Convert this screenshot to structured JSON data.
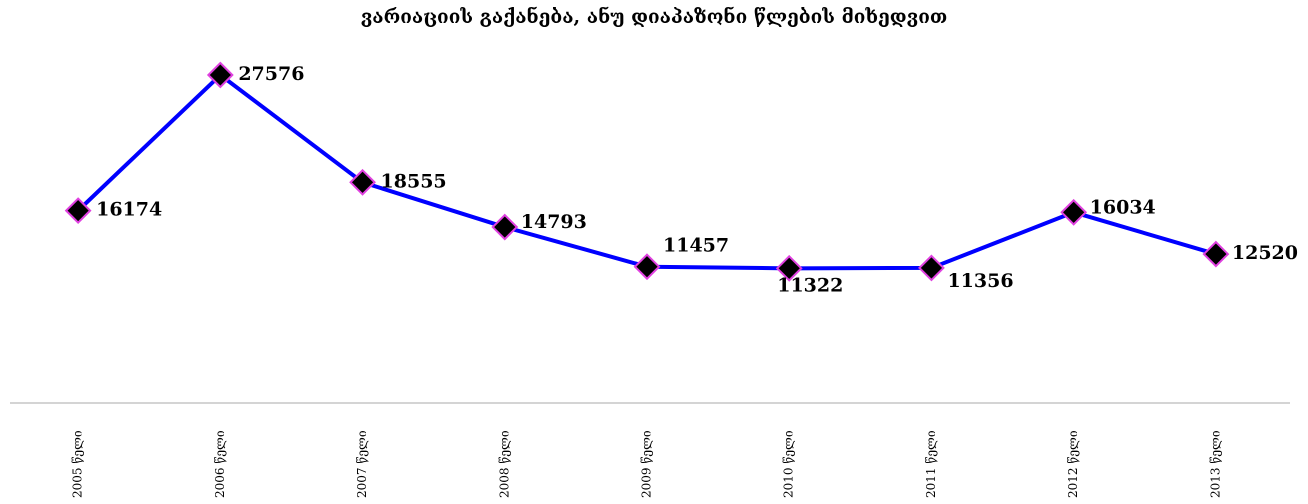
{
  "chart_data": {
    "type": "line",
    "title": "ვარიაციის გაქანება, ანუ დიაპაზონი წლების მიხედვით",
    "categories": [
      "2005 წელი",
      "2006 წელი",
      "2007 წელი",
      "2008 წელი",
      "2009 წელი",
      "2010 წელი",
      "2011 წელი",
      "2012 წელი",
      "2013 წელი"
    ],
    "series": [
      {
        "name": "ვარიაციის გაქანება",
        "color": "#0000ff",
        "values": [
          16174,
          27576,
          18555,
          14793,
          11457,
          11322,
          11356,
          16034,
          12520
        ]
      }
    ],
    "marker_color": "#000000",
    "marker_edge_color": "#e040e0"
  }
}
